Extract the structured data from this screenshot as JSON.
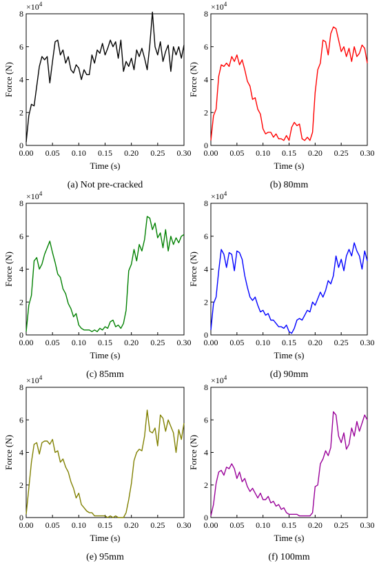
{
  "figure": {
    "panels": [
      {
        "caption": "(a) Not pre-cracked",
        "color": "#000000"
      },
      {
        "caption": "(b) 80mm",
        "color": "#ff0000"
      },
      {
        "caption": "(c) 85mm",
        "color": "#008000"
      },
      {
        "caption": "(d) 90mm",
        "color": "#0000ff"
      },
      {
        "caption": "(e) 95mm",
        "color": "#808000"
      },
      {
        "caption": "(f) 100mm",
        "color": "#990099"
      }
    ]
  },
  "chart_data": [
    {
      "type": "line",
      "caption": "(a) Not pre-cracked",
      "xlabel": "Time (s)",
      "ylabel": "Force (N)",
      "y_multiplier": "×10",
      "y_multiplier_exp": "4",
      "xlim": [
        0,
        0.3
      ],
      "ylim": [
        0,
        8
      ],
      "xticks": [
        "0.00",
        "0.05",
        "0.10",
        "0.15",
        "0.20",
        "0.25",
        "0.30"
      ],
      "yticks": [
        "0",
        "2",
        "4",
        "6",
        "8"
      ],
      "color": "#000000",
      "x": [
        0.0,
        0.005,
        0.01,
        0.015,
        0.02,
        0.025,
        0.03,
        0.035,
        0.04,
        0.045,
        0.05,
        0.055,
        0.06,
        0.065,
        0.07,
        0.075,
        0.08,
        0.085,
        0.09,
        0.095,
        0.1,
        0.105,
        0.11,
        0.115,
        0.12,
        0.125,
        0.13,
        0.135,
        0.14,
        0.145,
        0.15,
        0.155,
        0.16,
        0.165,
        0.17,
        0.175,
        0.18,
        0.185,
        0.19,
        0.195,
        0.2,
        0.205,
        0.21,
        0.215,
        0.22,
        0.225,
        0.23,
        0.235,
        0.24,
        0.245,
        0.25,
        0.255,
        0.26,
        0.265,
        0.27,
        0.275,
        0.28,
        0.285,
        0.29,
        0.295,
        0.3
      ],
      "y": [
        0.2,
        1.8,
        2.5,
        2.4,
        3.6,
        4.8,
        5.4,
        5.2,
        5.4,
        3.8,
        5.1,
        6.3,
        6.4,
        5.5,
        5.8,
        5.0,
        5.4,
        4.6,
        4.4,
        4.9,
        4.7,
        4.0,
        4.6,
        4.3,
        4.3,
        5.5,
        5.0,
        5.8,
        5.6,
        6.2,
        5.5,
        5.9,
        6.4,
        6.0,
        6.3,
        5.3,
        6.4,
        4.5,
        5.1,
        4.8,
        5.3,
        4.6,
        5.8,
        5.4,
        5.9,
        5.3,
        4.6,
        6.1,
        8.1,
        6.0,
        5.5,
        6.3,
        5.1,
        5.7,
        6.1,
        4.5,
        6.0,
        5.5,
        6.0,
        5.3,
        6.1
      ]
    },
    {
      "type": "line",
      "caption": "(b) 80mm",
      "xlabel": "Time (s)",
      "ylabel": "Force (N)",
      "y_multiplier": "×10",
      "y_multiplier_exp": "4",
      "xlim": [
        0,
        0.3
      ],
      "ylim": [
        0,
        8
      ],
      "xticks": [
        "0.00",
        "0.05",
        "0.10",
        "0.15",
        "0.20",
        "0.25",
        "0.30"
      ],
      "yticks": [
        "0",
        "2",
        "4",
        "6",
        "8"
      ],
      "color": "#ff0000",
      "x": [
        0.0,
        0.005,
        0.01,
        0.015,
        0.02,
        0.025,
        0.03,
        0.035,
        0.04,
        0.045,
        0.05,
        0.055,
        0.06,
        0.065,
        0.07,
        0.075,
        0.08,
        0.085,
        0.09,
        0.095,
        0.1,
        0.105,
        0.11,
        0.115,
        0.12,
        0.125,
        0.13,
        0.135,
        0.14,
        0.145,
        0.15,
        0.155,
        0.16,
        0.165,
        0.17,
        0.175,
        0.18,
        0.185,
        0.19,
        0.195,
        0.2,
        0.205,
        0.21,
        0.215,
        0.22,
        0.225,
        0.23,
        0.235,
        0.24,
        0.245,
        0.25,
        0.255,
        0.26,
        0.265,
        0.27,
        0.275,
        0.28,
        0.285,
        0.29,
        0.295,
        0.3
      ],
      "y": [
        0.3,
        1.8,
        2.2,
        4.2,
        4.9,
        4.8,
        5.0,
        4.8,
        5.4,
        5.1,
        5.5,
        4.9,
        5.2,
        4.6,
        3.9,
        3.6,
        2.8,
        2.9,
        2.2,
        1.9,
        1.0,
        0.7,
        0.8,
        0.8,
        0.5,
        0.7,
        0.4,
        0.4,
        0.3,
        0.6,
        0.3,
        1.1,
        1.4,
        1.2,
        1.3,
        0.4,
        0.3,
        0.5,
        0.3,
        0.8,
        3.2,
        4.6,
        5.0,
        6.4,
        6.3,
        5.5,
        6.8,
        7.2,
        7.1,
        6.4,
        5.7,
        6.0,
        5.4,
        5.9,
        5.1,
        6.0,
        5.4,
        5.6,
        6.1,
        5.9,
        5.0
      ]
    },
    {
      "type": "line",
      "caption": "(c) 85mm",
      "xlabel": "Time (s)",
      "ylabel": "Force (N)",
      "y_multiplier": "×10",
      "y_multiplier_exp": "4",
      "xlim": [
        0,
        0.3
      ],
      "ylim": [
        0,
        8
      ],
      "xticks": [
        "0.00",
        "0.05",
        "0.10",
        "0.15",
        "0.20",
        "0.25",
        "0.30"
      ],
      "yticks": [
        "0",
        "2",
        "4",
        "6",
        "8"
      ],
      "color": "#008000",
      "x": [
        0.0,
        0.005,
        0.01,
        0.015,
        0.02,
        0.025,
        0.03,
        0.035,
        0.04,
        0.045,
        0.05,
        0.055,
        0.06,
        0.065,
        0.07,
        0.075,
        0.08,
        0.085,
        0.09,
        0.095,
        0.1,
        0.105,
        0.11,
        0.115,
        0.12,
        0.125,
        0.13,
        0.135,
        0.14,
        0.145,
        0.15,
        0.155,
        0.16,
        0.165,
        0.17,
        0.175,
        0.18,
        0.185,
        0.19,
        0.195,
        0.2,
        0.205,
        0.21,
        0.215,
        0.22,
        0.225,
        0.23,
        0.235,
        0.24,
        0.245,
        0.25,
        0.255,
        0.26,
        0.265,
        0.27,
        0.275,
        0.28,
        0.285,
        0.29,
        0.295,
        0.3
      ],
      "y": [
        0.2,
        1.8,
        2.4,
        4.5,
        4.7,
        4.0,
        4.3,
        4.9,
        5.3,
        5.7,
        5.0,
        4.4,
        3.7,
        3.5,
        2.8,
        2.5,
        1.9,
        1.6,
        1.1,
        1.3,
        0.6,
        0.4,
        0.3,
        0.3,
        0.3,
        0.2,
        0.3,
        0.2,
        0.4,
        0.3,
        0.5,
        0.4,
        0.8,
        0.9,
        0.5,
        0.6,
        0.4,
        0.7,
        1.5,
        3.9,
        4.3,
        5.2,
        4.5,
        5.5,
        5.1,
        5.8,
        7.2,
        7.1,
        6.4,
        6.8,
        5.9,
        6.2,
        5.3,
        6.4,
        5.1,
        6.0,
        5.5,
        5.9,
        5.6,
        6.0,
        6.1
      ]
    },
    {
      "type": "line",
      "caption": "(d) 90mm",
      "xlabel": "Time (s)",
      "ylabel": "Force (N)",
      "y_multiplier": "×10",
      "y_multiplier_exp": "4",
      "xlim": [
        0,
        0.3
      ],
      "ylim": [
        0,
        8
      ],
      "xticks": [
        "0.00",
        "0.05",
        "0.10",
        "0.15",
        "0.20",
        "0.25",
        "0.30"
      ],
      "yticks": [
        "0",
        "2",
        "4",
        "6",
        "8"
      ],
      "color": "#0000ff",
      "x": [
        0.0,
        0.005,
        0.01,
        0.015,
        0.02,
        0.025,
        0.03,
        0.035,
        0.04,
        0.045,
        0.05,
        0.055,
        0.06,
        0.065,
        0.07,
        0.075,
        0.08,
        0.085,
        0.09,
        0.095,
        0.1,
        0.105,
        0.11,
        0.115,
        0.12,
        0.125,
        0.13,
        0.135,
        0.14,
        0.145,
        0.15,
        0.155,
        0.16,
        0.165,
        0.17,
        0.175,
        0.18,
        0.185,
        0.19,
        0.195,
        0.2,
        0.205,
        0.21,
        0.215,
        0.22,
        0.225,
        0.23,
        0.235,
        0.24,
        0.245,
        0.25,
        0.255,
        0.26,
        0.265,
        0.27,
        0.275,
        0.28,
        0.285,
        0.29,
        0.295,
        0.3
      ],
      "y": [
        0.3,
        1.9,
        2.3,
        3.9,
        5.2,
        4.9,
        4.1,
        5.0,
        4.9,
        3.9,
        5.1,
        5.0,
        4.6,
        3.6,
        2.9,
        2.3,
        2.1,
        2.3,
        1.8,
        1.4,
        1.5,
        1.2,
        1.3,
        0.9,
        0.9,
        0.7,
        0.5,
        0.5,
        0.4,
        0.6,
        0.2,
        0.1,
        0.4,
        0.9,
        1.0,
        0.9,
        1.2,
        1.5,
        1.4,
        2.0,
        1.8,
        2.2,
        2.6,
        2.3,
        2.7,
        3.3,
        3.1,
        3.6,
        4.8,
        4.1,
        4.6,
        3.9,
        4.8,
        5.2,
        4.8,
        5.6,
        5.1,
        4.8,
        4.0,
        5.1,
        4.5
      ]
    },
    {
      "type": "line",
      "caption": "(e) 95mm",
      "xlabel": "Time (s)",
      "ylabel": "Force (N)",
      "y_multiplier": "×10",
      "y_multiplier_exp": "4",
      "xlim": [
        0,
        0.3
      ],
      "ylim": [
        0,
        8
      ],
      "xticks": [
        "0.00",
        "0.05",
        "0.10",
        "0.15",
        "0.20",
        "0.25",
        "0.30"
      ],
      "yticks": [
        "0",
        "2",
        "4",
        "6",
        "8"
      ],
      "color": "#808000",
      "x": [
        0.0,
        0.005,
        0.01,
        0.015,
        0.02,
        0.025,
        0.03,
        0.035,
        0.04,
        0.045,
        0.05,
        0.055,
        0.06,
        0.065,
        0.07,
        0.075,
        0.08,
        0.085,
        0.09,
        0.095,
        0.1,
        0.105,
        0.11,
        0.115,
        0.12,
        0.125,
        0.13,
        0.135,
        0.14,
        0.145,
        0.15,
        0.155,
        0.16,
        0.165,
        0.17,
        0.175,
        0.18,
        0.185,
        0.19,
        0.195,
        0.2,
        0.205,
        0.21,
        0.215,
        0.22,
        0.225,
        0.23,
        0.235,
        0.24,
        0.245,
        0.25,
        0.255,
        0.26,
        0.265,
        0.27,
        0.275,
        0.28,
        0.285,
        0.29,
        0.295,
        0.3
      ],
      "y": [
        0.2,
        1.8,
        3.4,
        4.5,
        4.6,
        3.9,
        4.6,
        4.7,
        4.7,
        4.5,
        4.8,
        4.0,
        4.1,
        3.4,
        3.6,
        3.1,
        2.8,
        2.2,
        1.8,
        1.2,
        1.5,
        0.8,
        0.6,
        0.4,
        0.3,
        0.3,
        0.1,
        0.1,
        0.1,
        0.1,
        0.1,
        0.0,
        0.1,
        0.0,
        0.1,
        0.0,
        0.0,
        0.0,
        0.3,
        1.1,
        2.1,
        3.5,
        4.0,
        4.2,
        4.1,
        5.0,
        6.6,
        5.3,
        5.2,
        5.5,
        4.4,
        6.3,
        6.1,
        5.3,
        6.0,
        5.6,
        5.2,
        4.0,
        5.4,
        4.8,
        5.8
      ]
    },
    {
      "type": "line",
      "caption": "(f) 100mm",
      "xlabel": "Time (s)",
      "ylabel": "Force (N)",
      "y_multiplier": "×10",
      "y_multiplier_exp": "4",
      "xlim": [
        0,
        0.3
      ],
      "ylim": [
        0,
        8
      ],
      "xticks": [
        "0.00",
        "0.05",
        "0.10",
        "0.15",
        "0.20",
        "0.25",
        "0.30"
      ],
      "yticks": [
        "0",
        "2",
        "4",
        "6",
        "8"
      ],
      "color": "#990099",
      "x": [
        0.0,
        0.005,
        0.01,
        0.015,
        0.02,
        0.025,
        0.03,
        0.035,
        0.04,
        0.045,
        0.05,
        0.055,
        0.06,
        0.065,
        0.07,
        0.075,
        0.08,
        0.085,
        0.09,
        0.095,
        0.1,
        0.105,
        0.11,
        0.115,
        0.12,
        0.125,
        0.13,
        0.135,
        0.14,
        0.145,
        0.15,
        0.155,
        0.16,
        0.165,
        0.17,
        0.175,
        0.18,
        0.185,
        0.19,
        0.195,
        0.2,
        0.205,
        0.21,
        0.215,
        0.22,
        0.225,
        0.23,
        0.235,
        0.24,
        0.245,
        0.25,
        0.255,
        0.26,
        0.265,
        0.27,
        0.275,
        0.28,
        0.285,
        0.29,
        0.295,
        0.3
      ],
      "y": [
        0.1,
        0.8,
        2.1,
        2.8,
        2.9,
        2.6,
        3.1,
        3.0,
        3.3,
        3.0,
        2.4,
        2.8,
        2.2,
        2.4,
        1.9,
        1.6,
        1.8,
        1.5,
        1.2,
        1.5,
        1.1,
        1.1,
        1.3,
        0.9,
        1.0,
        0.7,
        0.8,
        0.5,
        0.6,
        0.3,
        0.2,
        0.2,
        0.2,
        0.2,
        0.1,
        0.1,
        0.1,
        0.1,
        0.1,
        0.3,
        1.9,
        2.0,
        3.3,
        3.6,
        4.1,
        3.8,
        4.3,
        6.5,
        6.3,
        5.0,
        4.6,
        5.2,
        4.2,
        4.5,
        5.5,
        5.0,
        5.9,
        5.3,
        5.8,
        6.3,
        6.0
      ]
    }
  ]
}
